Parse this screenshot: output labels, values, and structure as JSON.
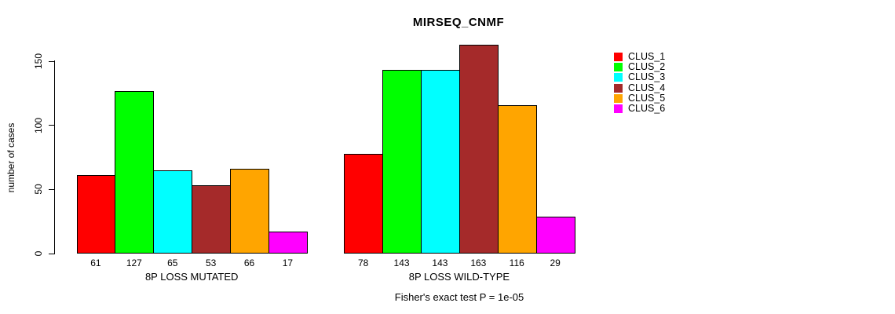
{
  "chart_data": {
    "type": "bar",
    "title": "MIRSEQ_CNMF",
    "ylabel": "number of cases",
    "xlabel": "",
    "categories": [
      "8P LOSS MUTATED",
      "8P LOSS WILD-TYPE"
    ],
    "series": [
      {
        "name": "CLUS_1",
        "color": "#FF0000",
        "values": [
          61,
          78
        ]
      },
      {
        "name": "CLUS_2",
        "color": "#00FF00",
        "values": [
          127,
          143
        ]
      },
      {
        "name": "CLUS_3",
        "color": "#00FFFF",
        "values": [
          65,
          143
        ]
      },
      {
        "name": "CLUS_4",
        "color": "#A52A2A",
        "values": [
          53,
          163
        ]
      },
      {
        "name": "CLUS_5",
        "color": "#FFA500",
        "values": [
          66,
          116
        ]
      },
      {
        "name": "CLUS_6",
        "color": "#FF00FF",
        "values": [
          17,
          29
        ]
      }
    ],
    "bar_value_labels": {
      "8P LOSS MUTATED": [
        61,
        127,
        65,
        53,
        66,
        17
      ],
      "8P LOSS WILD-TYPE": [
        78,
        143,
        143,
        163,
        116,
        29
      ]
    },
    "annotation": "Fisher's exact test P = 1e-05",
    "ylim": [
      0,
      150
    ],
    "yticks": [
      0,
      50,
      100,
      150
    ],
    "grid": false,
    "legend_position": "right",
    "legend_entries": [
      "CLUS_1",
      "CLUS_2",
      "CLUS_3",
      "CLUS_4",
      "CLUS_5",
      "CLUS_6"
    ],
    "legend_colors": [
      "#FF0000",
      "#00FF00",
      "#00FFFF",
      "#A52A2A",
      "#FFA500",
      "#FF00FF"
    ],
    "bar_border_color": "#000000",
    "axis_color": "#000000",
    "background_color": "#FFFFFF"
  }
}
